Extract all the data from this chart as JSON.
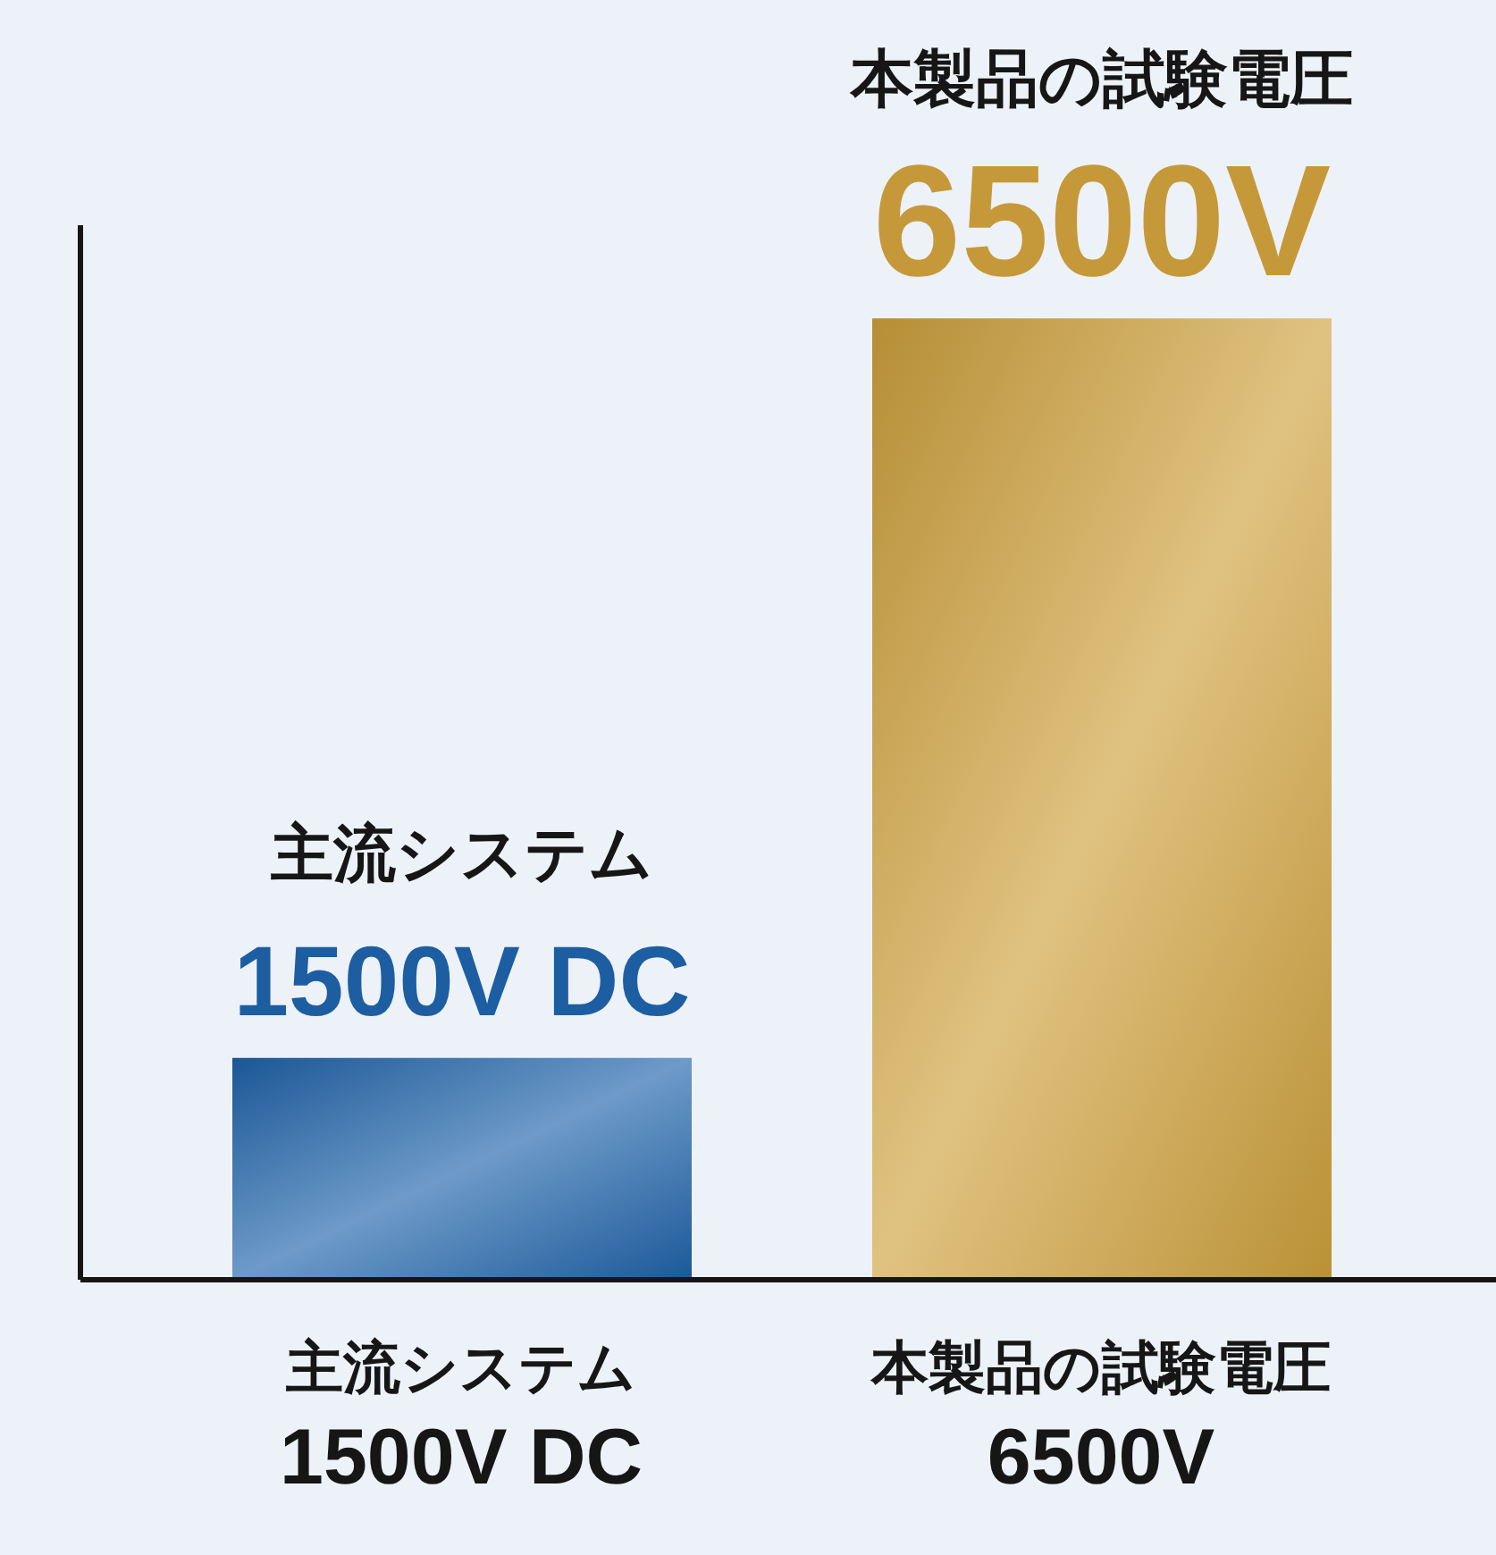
{
  "chart_data": {
    "type": "bar",
    "categories": [
      "主流システム\n1500V DC",
      "本製品の試験電圧\n6500V"
    ],
    "values": [
      1500,
      6500
    ],
    "colors": [
      "#1f63aa",
      "#cfa13c"
    ],
    "value_labels": [
      "主流システム\n1500V DC",
      "本製品の試験電圧\n6500V"
    ],
    "tick_labels": "x"
  }
}
